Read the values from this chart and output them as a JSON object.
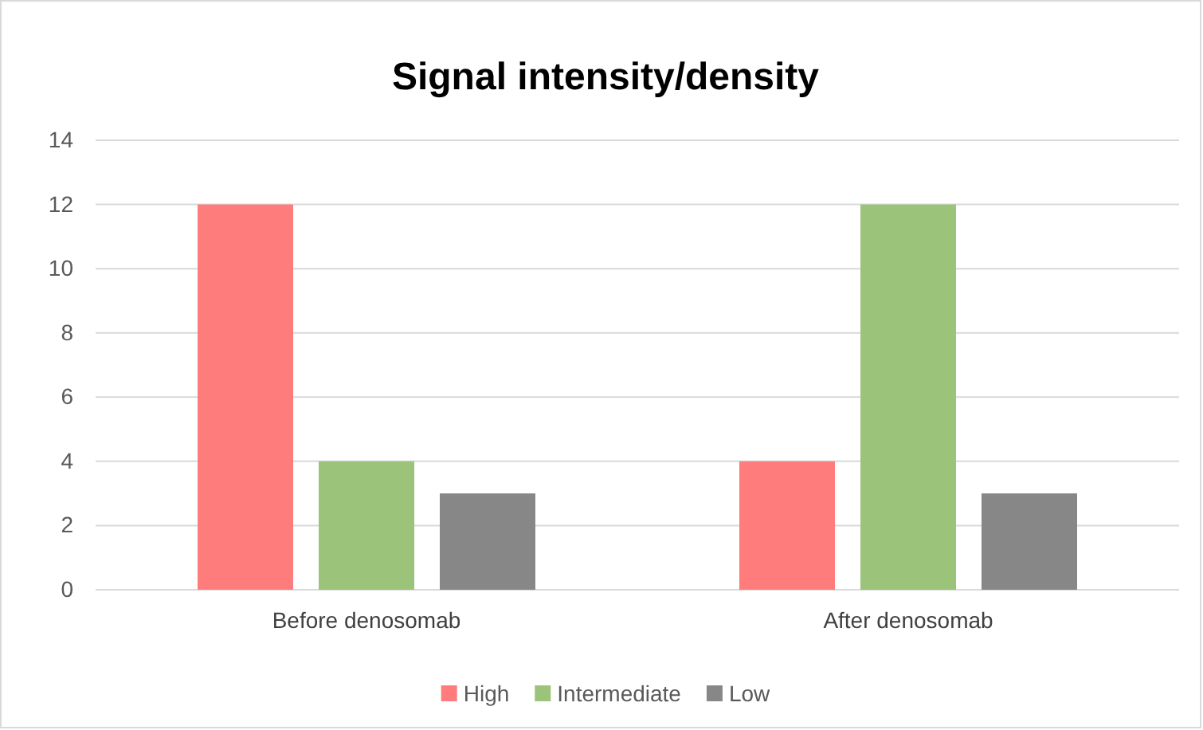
{
  "chart_data": {
    "type": "bar",
    "title": "Signal intensity/density",
    "categories": [
      "Before denosomab",
      "After denosomab"
    ],
    "series": [
      {
        "name": "High",
        "color": "#ff7c7c",
        "values": [
          12,
          4
        ]
      },
      {
        "name": "Intermediate",
        "color": "#9bc47a",
        "values": [
          4,
          12
        ]
      },
      {
        "name": "Low",
        "color": "#878787",
        "values": [
          3,
          3
        ]
      }
    ],
    "ylim": [
      0,
      14
    ],
    "yticks": [
      0,
      2,
      4,
      6,
      8,
      10,
      12,
      14
    ],
    "grid": "y",
    "legend": "bottom"
  }
}
